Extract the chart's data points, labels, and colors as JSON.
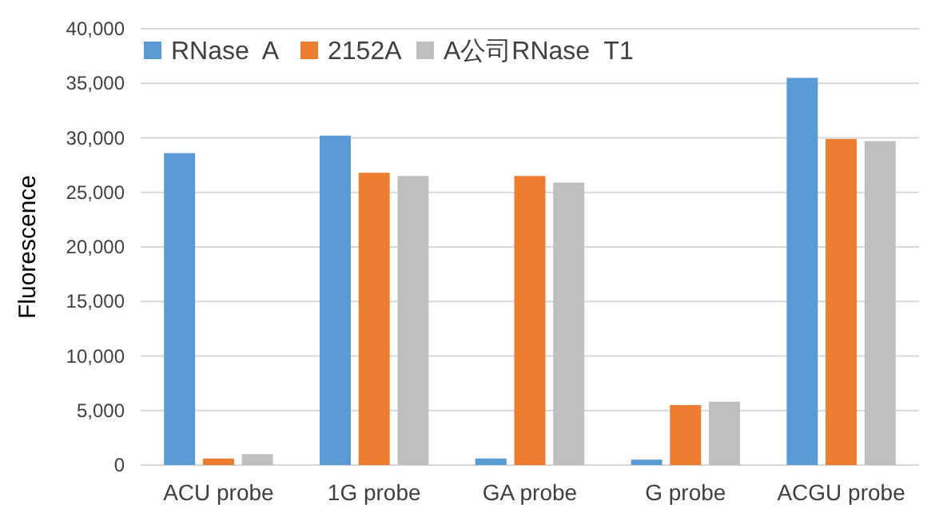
{
  "chart_data": {
    "type": "bar",
    "ylabel": "Fluorescence",
    "categories": [
      "ACU probe",
      "1G probe",
      "GA probe",
      "G probe",
      "ACGU probe"
    ],
    "series": [
      {
        "name": "RNase  A",
        "color": "#5b9bd5",
        "values": [
          28600,
          30200,
          600,
          500,
          35500
        ]
      },
      {
        "name": "2152A",
        "color": "#ed7d31",
        "values": [
          600,
          26800,
          26500,
          5500,
          29900
        ]
      },
      {
        "name": "A公司RNase  T1",
        "color": "#bfbfbf",
        "values": [
          1000,
          26500,
          25900,
          5800,
          29700
        ]
      }
    ],
    "ylim": [
      0,
      40000
    ],
    "yticks": [
      {
        "value": 0,
        "label": "0"
      },
      {
        "value": 5000,
        "label": "5,000"
      },
      {
        "value": 10000,
        "label": "10,000"
      },
      {
        "value": 15000,
        "label": "15,000"
      },
      {
        "value": 20000,
        "label": "20,000"
      },
      {
        "value": 25000,
        "label": "25,000"
      },
      {
        "value": 30000,
        "label": "30,000"
      },
      {
        "value": 35000,
        "label": "35,000"
      },
      {
        "value": 40000,
        "label": "40,000"
      }
    ],
    "grid": "y",
    "legend": "top left"
  }
}
